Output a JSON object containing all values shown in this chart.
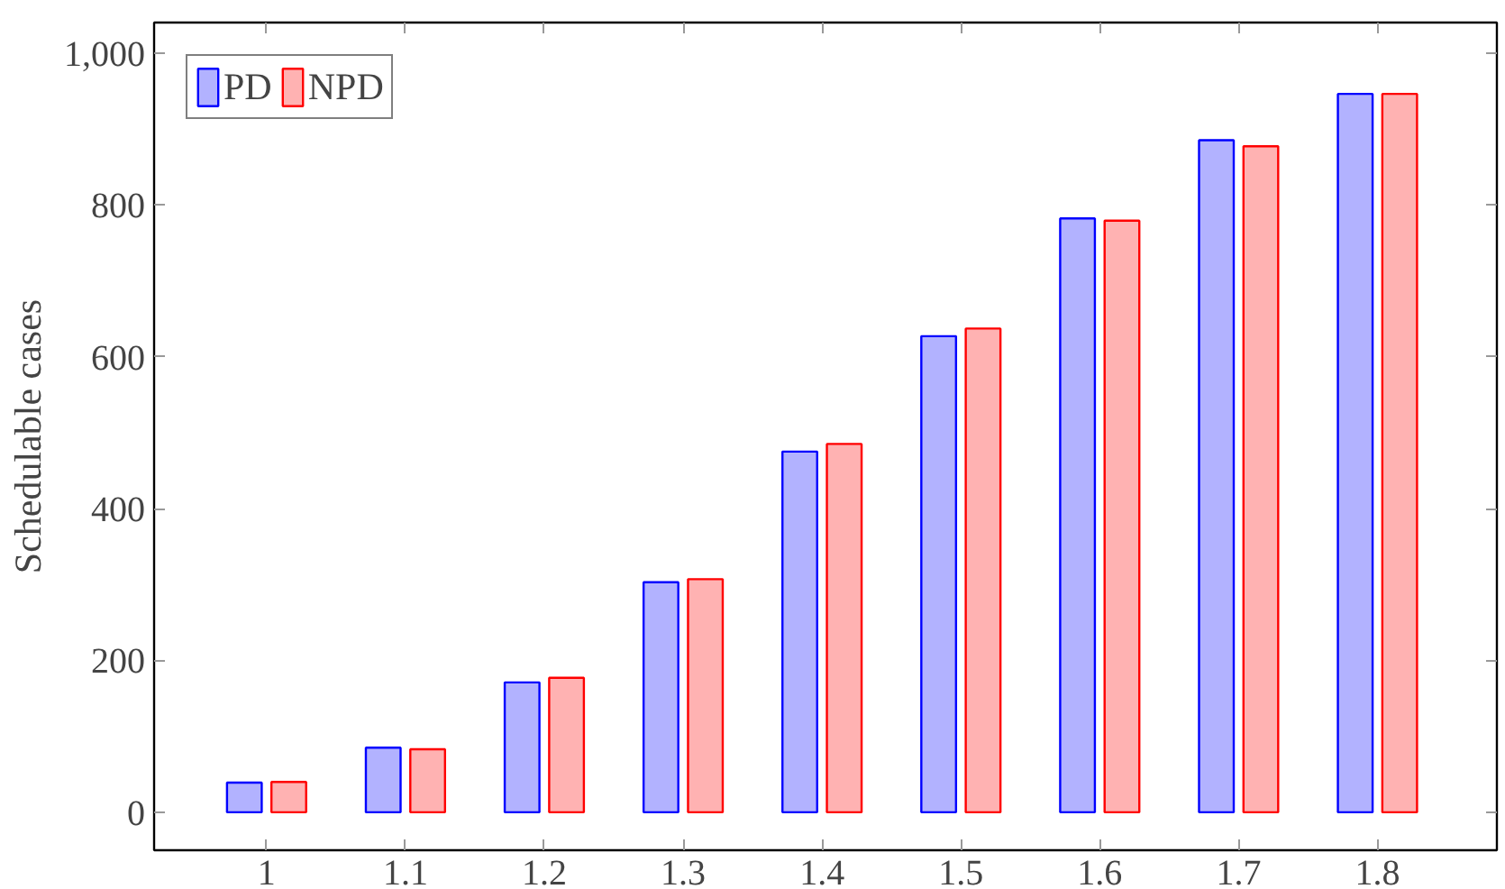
{
  "chart_data": {
    "type": "bar",
    "ylabel": "Schedulable cases",
    "categories": [
      "1",
      "1.1",
      "1.2",
      "1.3",
      "1.4",
      "1.5",
      "1.6",
      "1.7",
      "1.8"
    ],
    "series": [
      {
        "name": "PD",
        "color": "#0000ff",
        "values": [
          39,
          85,
          171,
          303,
          475,
          627,
          782,
          885,
          946
        ]
      },
      {
        "name": "NPD",
        "color": "#ff0000",
        "values": [
          40,
          83,
          177,
          307,
          485,
          637,
          779,
          877,
          946
        ]
      }
    ],
    "ylim": [
      -50,
      1040
    ],
    "yticks": [
      0,
      200,
      400,
      600,
      800,
      {
        "value": 1000,
        "label": "1,000"
      }
    ],
    "grid": false,
    "legend": "top left"
  }
}
